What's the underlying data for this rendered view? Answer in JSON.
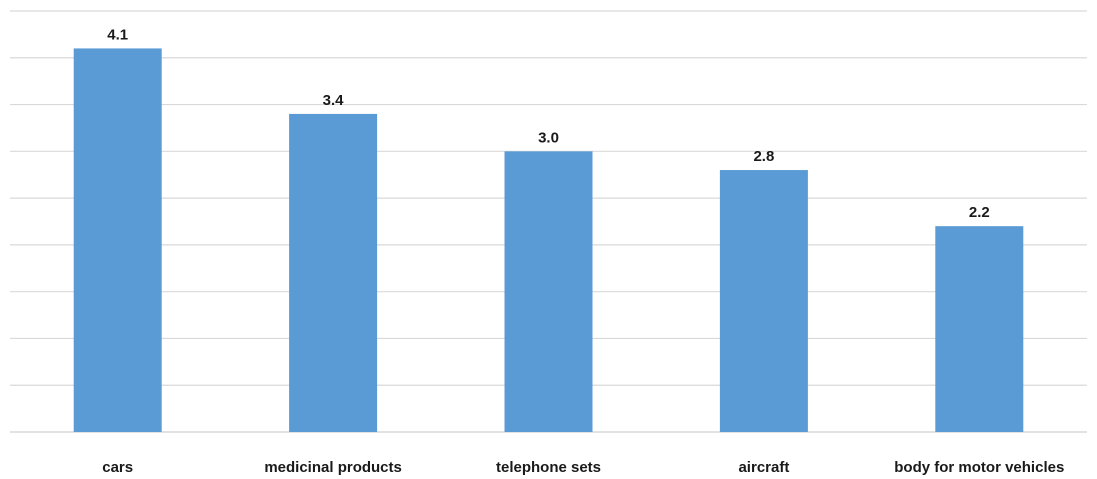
{
  "chart_data": {
    "type": "bar",
    "categories": [
      "cars",
      "medicinal products",
      "telephone sets",
      "aircraft",
      "body for motor vehicles"
    ],
    "values": [
      4.1,
      3.4,
      3.0,
      2.8,
      2.2
    ],
    "data_labels": [
      "4.1",
      "3.4",
      "3.0",
      "2.8",
      "2.2"
    ],
    "title": "",
    "xlabel": "",
    "ylabel": "",
    "ylim": [
      0,
      4.5
    ],
    "gridlines": true,
    "y_tick_labels_visible": false,
    "legend": "none",
    "colors": {
      "bar": "#5b9bd5",
      "grid": "#d9d9d9",
      "text": "#1a1a1a"
    }
  }
}
